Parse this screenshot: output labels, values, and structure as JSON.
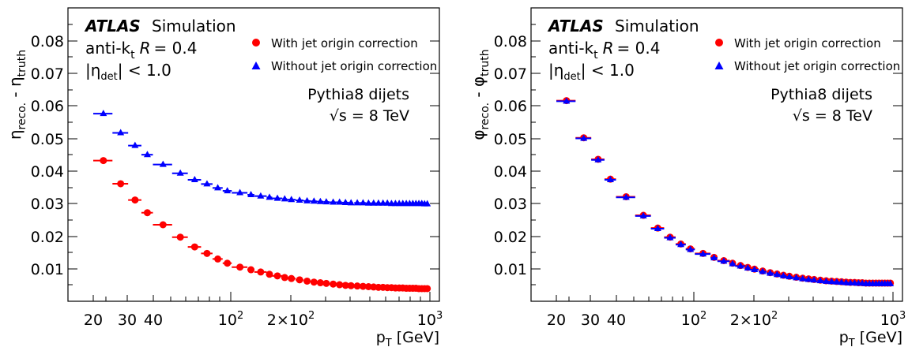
{
  "chart_data": [
    {
      "type": "scatter",
      "panel": "left",
      "xscale": "log",
      "xlim": [
        15,
        1000
      ],
      "ylim": [
        0,
        0.09
      ],
      "ylabel": "η reco. - η truth",
      "ylabel_main": "η",
      "ylabel_sub1": "reco.",
      "ylabel_sep": " - ",
      "ylabel_sub2": "truth",
      "xlabel_main": "p",
      "xlabel_sub": "T",
      "xlabel_rest": " [GeV]",
      "xticklabels": [
        "20",
        "30",
        "40",
        "10",
        "2",
        "2×10",
        "2",
        "10",
        "3"
      ],
      "yticks": [
        0.01,
        0.02,
        0.03,
        0.04,
        0.05,
        0.06,
        0.07,
        0.08
      ],
      "yticklabels": [
        "0.01",
        "0.02",
        "0.03",
        "0.04",
        "0.05",
        "0.06",
        "0.07",
        "0.08"
      ],
      "annotations": {
        "atlas": "ATLAS",
        "simulation": "Simulation",
        "algo_prefix": "anti-k",
        "algo_sub": "t",
        "algo_r": "R",
        "algo_val": "= 0.4",
        "eta_open": "|η",
        "eta_sub": "det",
        "eta_close": "| < 1.0",
        "generator": "Pythia8 dijets",
        "sqrt": "√s = 8 TeV"
      },
      "legend": {
        "placement": "top-right",
        "entries": [
          "With jet origin correction",
          "Without jet origin correction"
        ]
      },
      "series": [
        {
          "name": "With jet origin correction",
          "marker": "circle",
          "color": "#ff0000",
          "x": [
            22.5,
            27.5,
            32.5,
            37.5,
            45,
            55,
            65,
            75,
            85,
            95,
            110,
            125,
            140,
            155,
            170,
            185,
            200,
            220,
            240,
            260,
            280,
            300,
            325,
            350,
            375,
            400,
            430,
            460,
            490,
            520,
            550,
            580,
            610,
            640,
            670,
            700,
            730,
            760,
            790,
            820,
            850,
            880,
            910,
            940,
            970
          ],
          "y": [
            0.0433,
            0.0362,
            0.0312,
            0.0273,
            0.0236,
            0.0198,
            0.0168,
            0.0148,
            0.0131,
            0.0118,
            0.0106,
            0.0098,
            0.0091,
            0.0084,
            0.0079,
            0.0074,
            0.0071,
            0.0067,
            0.0063,
            0.006,
            0.0058,
            0.0056,
            0.0054,
            0.0052,
            0.005,
            0.0049,
            0.0048,
            0.0047,
            0.0046,
            0.0045,
            0.0044,
            0.0044,
            0.0043,
            0.0043,
            0.0042,
            0.0042,
            0.0042,
            0.0041,
            0.0041,
            0.0041,
            0.0041,
            0.004,
            0.004,
            0.004,
            0.004
          ],
          "xerr": [
            2.5,
            2.5,
            2.5,
            2.5,
            5,
            5,
            5,
            5,
            5,
            5,
            10,
            5,
            10,
            5,
            10,
            5,
            10,
            10,
            10,
            10,
            10,
            10,
            15,
            10,
            15,
            10,
            15,
            15,
            15,
            15,
            15,
            15,
            15,
            15,
            15,
            15,
            15,
            15,
            15,
            15,
            15,
            15,
            15,
            15,
            15
          ]
        },
        {
          "name": "Without jet origin correction",
          "marker": "triangle",
          "color": "#0000ff",
          "x": [
            22.5,
            27.5,
            32.5,
            37.5,
            45,
            55,
            65,
            75,
            85,
            95,
            110,
            125,
            140,
            155,
            170,
            185,
            200,
            220,
            240,
            260,
            280,
            300,
            325,
            350,
            375,
            400,
            430,
            460,
            490,
            520,
            550,
            580,
            610,
            640,
            670,
            700,
            730,
            760,
            790,
            820,
            850,
            880,
            910,
            940,
            970
          ],
          "y": [
            0.0577,
            0.0518,
            0.0479,
            0.0451,
            0.0421,
            0.0394,
            0.0374,
            0.0361,
            0.0349,
            0.034,
            0.0334,
            0.0328,
            0.0324,
            0.032,
            0.0317,
            0.0315,
            0.0313,
            0.0311,
            0.0309,
            0.0308,
            0.0307,
            0.0306,
            0.0305,
            0.0305,
            0.0304,
            0.0303,
            0.0303,
            0.0303,
            0.0302,
            0.0302,
            0.0302,
            0.0302,
            0.0302,
            0.0301,
            0.0301,
            0.0301,
            0.0301,
            0.0301,
            0.0301,
            0.0301,
            0.0301,
            0.0301,
            0.0301,
            0.03,
            0.03
          ],
          "xerr": [
            2.5,
            2.5,
            2.5,
            2.5,
            5,
            5,
            5,
            5,
            5,
            5,
            10,
            5,
            10,
            5,
            10,
            5,
            10,
            10,
            10,
            10,
            10,
            10,
            15,
            10,
            15,
            10,
            15,
            15,
            15,
            15,
            15,
            15,
            15,
            15,
            15,
            15,
            15,
            15,
            15,
            15,
            15,
            15,
            15,
            15,
            15
          ]
        }
      ]
    },
    {
      "type": "scatter",
      "panel": "right",
      "xscale": "log",
      "xlim": [
        15,
        1000
      ],
      "ylim": [
        0,
        0.09
      ],
      "ylabel": "φ reco. - φ truth",
      "ylabel_main": "φ",
      "ylabel_sub1": "reco.",
      "ylabel_sep": " - ",
      "ylabel_sub2": "truth",
      "xlabel_main": "p",
      "xlabel_sub": "T",
      "xlabel_rest": " [GeV]",
      "xticklabels": [
        "20",
        "30",
        "40",
        "10",
        "2",
        "2×10",
        "2",
        "10",
        "3"
      ],
      "yticks": [
        0.01,
        0.02,
        0.03,
        0.04,
        0.05,
        0.06,
        0.07,
        0.08
      ],
      "yticklabels": [
        "0.01",
        "0.02",
        "0.03",
        "0.04",
        "0.05",
        "0.06",
        "0.07",
        "0.08"
      ],
      "annotations": {
        "atlas": "ATLAS",
        "simulation": "Simulation",
        "algo_prefix": "anti-k",
        "algo_sub": "t",
        "algo_r": "R",
        "algo_val": "= 0.4",
        "eta_open": "|η",
        "eta_sub": "det",
        "eta_close": "| < 1.0",
        "generator": "Pythia8 dijets",
        "sqrt": "√s = 8 TeV"
      },
      "legend": {
        "placement": "top-right",
        "entries": [
          "With jet origin correction",
          "Without jet origin correction"
        ]
      },
      "series": [
        {
          "name": "With jet origin correction",
          "marker": "circle",
          "color": "#ff0000",
          "x": [
            22.5,
            27.5,
            32.5,
            37.5,
            45,
            55,
            65,
            75,
            85,
            95,
            110,
            125,
            140,
            155,
            170,
            185,
            200,
            220,
            240,
            260,
            280,
            300,
            325,
            350,
            375,
            400,
            430,
            460,
            490,
            520,
            550,
            580,
            610,
            640,
            670,
            700,
            730,
            760,
            790,
            820,
            850,
            880,
            910,
            940,
            970
          ],
          "y": [
            0.0617,
            0.0503,
            0.0437,
            0.0376,
            0.0322,
            0.0265,
            0.0226,
            0.0198,
            0.0177,
            0.0162,
            0.0148,
            0.0136,
            0.0126,
            0.0118,
            0.0111,
            0.0105,
            0.01,
            0.0094,
            0.0089,
            0.0085,
            0.0081,
            0.0078,
            0.0075,
            0.0072,
            0.007,
            0.0068,
            0.0066,
            0.0064,
            0.0063,
            0.0062,
            0.0061,
            0.006,
            0.0059,
            0.0059,
            0.0058,
            0.0058,
            0.0057,
            0.0057,
            0.0057,
            0.0057,
            0.0057,
            0.0057,
            0.0057,
            0.0057,
            0.0057
          ],
          "xerr": [
            2.5,
            2.5,
            2.5,
            2.5,
            5,
            5,
            5,
            5,
            5,
            5,
            10,
            5,
            10,
            5,
            10,
            5,
            10,
            10,
            10,
            10,
            10,
            10,
            15,
            10,
            15,
            10,
            15,
            15,
            15,
            15,
            15,
            15,
            15,
            15,
            15,
            15,
            15,
            15,
            15,
            15,
            15,
            15,
            15,
            15,
            15
          ]
        },
        {
          "name": "Without jet origin correction",
          "marker": "triangle",
          "color": "#0000ff",
          "x": [
            22.5,
            27.5,
            32.5,
            37.5,
            45,
            55,
            65,
            75,
            85,
            95,
            110,
            125,
            140,
            155,
            170,
            185,
            200,
            220,
            240,
            260,
            280,
            300,
            325,
            350,
            375,
            400,
            430,
            460,
            490,
            520,
            550,
            580,
            610,
            640,
            670,
            700,
            730,
            760,
            790,
            820,
            850,
            880,
            910,
            940,
            970
          ],
          "y": [
            0.0615,
            0.0501,
            0.0435,
            0.0374,
            0.032,
            0.0263,
            0.0224,
            0.0196,
            0.0175,
            0.016,
            0.0146,
            0.0134,
            0.0124,
            0.0116,
            0.0109,
            0.0103,
            0.0098,
            0.0092,
            0.0087,
            0.0083,
            0.0079,
            0.0076,
            0.0073,
            0.007,
            0.0068,
            0.0066,
            0.0064,
            0.0062,
            0.0061,
            0.006,
            0.0059,
            0.0058,
            0.0057,
            0.0057,
            0.0056,
            0.0056,
            0.0055,
            0.0055,
            0.0055,
            0.0055,
            0.0055,
            0.0055,
            0.0055,
            0.0055,
            0.0055
          ],
          "xerr": [
            2.5,
            2.5,
            2.5,
            2.5,
            5,
            5,
            5,
            5,
            5,
            5,
            10,
            5,
            10,
            5,
            10,
            5,
            10,
            10,
            10,
            10,
            10,
            10,
            15,
            10,
            15,
            10,
            15,
            15,
            15,
            15,
            15,
            15,
            15,
            15,
            15,
            15,
            15,
            15,
            15,
            15,
            15,
            15,
            15,
            15,
            15
          ]
        }
      ]
    }
  ]
}
